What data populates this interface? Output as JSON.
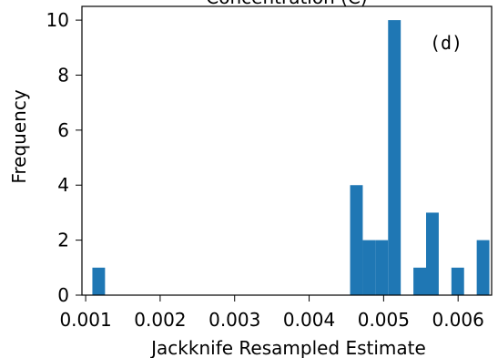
{
  "chart_data": {
    "type": "bar",
    "title": "Concentration (C)",
    "xlabel": "Jackknife Resampled Estimate",
    "ylabel": "Frequency",
    "annotation": "(d)",
    "xlim": [
      0.00095,
      0.00645
    ],
    "ylim": [
      0,
      10.5
    ],
    "x_ticks": [
      "0.001",
      "0.002",
      "0.003",
      "0.004",
      "0.005",
      "0.006"
    ],
    "y_ticks": [
      "0",
      "2",
      "4",
      "6",
      "8",
      "10"
    ],
    "bin_width": 0.00017,
    "bars": [
      {
        "x": 0.00109,
        "count": 1
      },
      {
        "x": 0.00455,
        "count": 4
      },
      {
        "x": 0.00472,
        "count": 2
      },
      {
        "x": 0.00489,
        "count": 2
      },
      {
        "x": 0.00506,
        "count": 10
      },
      {
        "x": 0.00523,
        "count": 0
      },
      {
        "x": 0.0054,
        "count": 1
      },
      {
        "x": 0.00557,
        "count": 3
      },
      {
        "x": 0.00574,
        "count": 0
      },
      {
        "x": 0.00591,
        "count": 1
      },
      {
        "x": 0.00608,
        "count": 0
      },
      {
        "x": 0.00625,
        "count": 2
      }
    ],
    "colors": {
      "bar": "#1f77b4",
      "axis": "#000000"
    },
    "grid": false,
    "legend": "none"
  }
}
